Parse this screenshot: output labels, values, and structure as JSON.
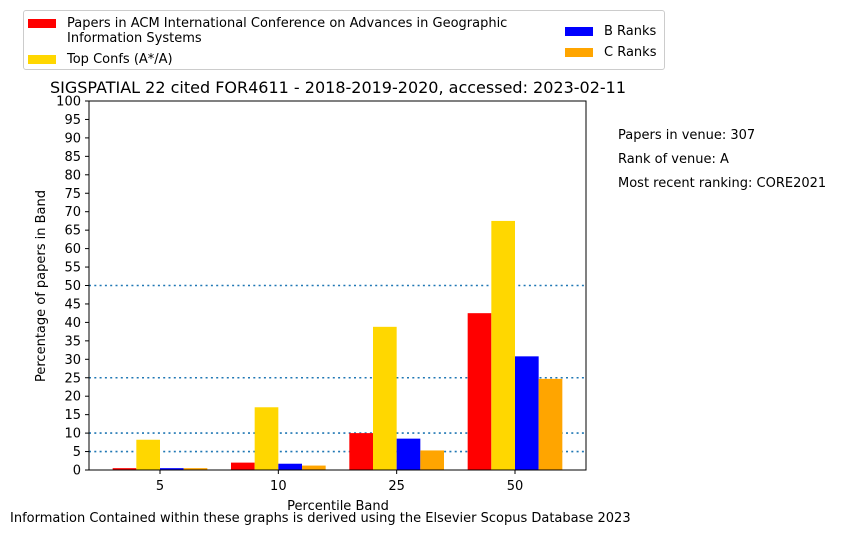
{
  "chart_data": {
    "type": "bar",
    "title": "SIGSPATIAL 22 cited FOR4611 - 2018-2019-2020, accessed: 2023-02-11",
    "xlabel": "Percentile Band",
    "ylabel": "Percentage of papers in Band",
    "categories": [
      "5",
      "10",
      "25",
      "50"
    ],
    "ylim": [
      0,
      100
    ],
    "yticks": [
      0,
      5,
      10,
      15,
      20,
      25,
      30,
      35,
      40,
      45,
      50,
      55,
      60,
      65,
      70,
      75,
      80,
      85,
      90,
      95,
      100
    ],
    "series": [
      {
        "name": "Papers in ACM International Conference on Advances in Geographic Information Systems",
        "color": "#ff0000",
        "values": [
          0.5,
          2.0,
          10.0,
          42.5
        ]
      },
      {
        "name": "Top Confs (A*/A)",
        "color": "#ffd700",
        "values": [
          8.2,
          17.0,
          38.8,
          67.5
        ]
      },
      {
        "name": "B Ranks",
        "color": "#0000ff",
        "values": [
          0.5,
          1.7,
          8.5,
          30.8
        ]
      },
      {
        "name": "C Ranks",
        "color": "#ffa500",
        "values": [
          0.5,
          1.2,
          5.3,
          24.7
        ]
      }
    ],
    "reference_lines": [
      5,
      10,
      25,
      50
    ],
    "reference_line_color": "#1f77b4",
    "legend_placement": "top"
  },
  "side_notes": {
    "papers": "Papers in venue: 307",
    "rank": "Rank of venue: A",
    "ranking": "Most recent ranking: CORE2021"
  },
  "footer": "Information Contained within these graphs is derived using the Elsevier Scopus Database 2023"
}
